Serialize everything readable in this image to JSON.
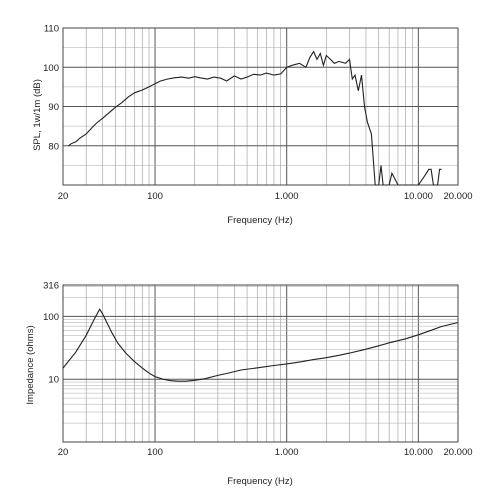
{
  "chart_data": [
    {
      "type": "line",
      "title": "",
      "xlabel": "Frequency (Hz)",
      "ylabel": "SPL, 1w/1m (dB)",
      "x_scale": "log",
      "xlim": [
        20,
        20000
      ],
      "ylim": [
        70,
        110
      ],
      "grid": true,
      "x_tick_labels": [
        "20",
        "100",
        "1.000",
        "10.000",
        "20.000"
      ],
      "y_tick_labels": [
        "80",
        "90",
        "100",
        "110"
      ],
      "series": [
        {
          "x": [
            22,
            23,
            25,
            27,
            30,
            33,
            36,
            40,
            45,
            50,
            56,
            63,
            70,
            80,
            90,
            100,
            110,
            125,
            140,
            160,
            180,
            200,
            220,
            250,
            280,
            315,
            350,
            400,
            450,
            500,
            560,
            630,
            700,
            800,
            900,
            1000,
            1100,
            1250,
            1400,
            1500,
            1600,
            1700,
            1800,
            1900,
            2000,
            2150,
            2300,
            2500,
            2800,
            3000,
            3150,
            3300,
            3500,
            3700,
            3900,
            4100,
            4400,
            4700,
            5000,
            5200,
            5400,
            5700,
            6000,
            6300,
            7000,
            8000,
            9000,
            10000,
            11000,
            12000,
            12500,
            13000,
            13500,
            14000,
            14500,
            15000
          ],
          "y": [
            80,
            80.5,
            81,
            82,
            83,
            84.5,
            85.8,
            87,
            88.5,
            89.8,
            91,
            92.5,
            93.5,
            94.2,
            95,
            95.8,
            96.5,
            97,
            97.3,
            97.5,
            97.2,
            97.6,
            97.3,
            97,
            97.5,
            97.2,
            96.5,
            97.8,
            97,
            97.5,
            98.2,
            98,
            98.5,
            98,
            98.3,
            100,
            100.5,
            101,
            100,
            102.5,
            104,
            102,
            103.5,
            100.5,
            103,
            102,
            101,
            101.5,
            101,
            102,
            97,
            98,
            94,
            98,
            90,
            86,
            83,
            70,
            70,
            75,
            70,
            70,
            70,
            73,
            70,
            70,
            70,
            70,
            72,
            74,
            74,
            70,
            70,
            70,
            74,
            74
          ]
        }
      ]
    },
    {
      "type": "line",
      "title": "",
      "xlabel": "Frequency (Hz)",
      "ylabel": "Impedance (ohms)",
      "x_scale": "log",
      "y_scale": "log",
      "xlim": [
        20,
        20000
      ],
      "ylim": [
        1,
        316
      ],
      "grid": true,
      "x_tick_labels": [
        "20",
        "100",
        "1.000",
        "10.000",
        "20.000"
      ],
      "y_tick_labels": [
        "316",
        "100",
        "10"
      ],
      "series": [
        {
          "x": [
            20,
            25,
            30,
            35,
            38,
            40,
            43,
            47,
            52,
            60,
            70,
            80,
            90,
            100,
            115,
            130,
            150,
            170,
            200,
            240,
            300,
            360,
            450,
            550,
            650,
            800,
            1000,
            1300,
            1600,
            2000,
            2500,
            3000,
            4000,
            5000,
            6000,
            8000,
            10000,
            12500,
            15000,
            20000
          ],
          "y": [
            15,
            27,
            50,
            95,
            130,
            110,
            80,
            55,
            38,
            26,
            19,
            15,
            12.5,
            11,
            10,
            9.5,
            9.3,
            9.3,
            9.6,
            10.2,
            11.5,
            12.5,
            14,
            14.8,
            15.5,
            16.5,
            17.5,
            19,
            20.5,
            22,
            24,
            26,
            30,
            34,
            38,
            44,
            51,
            60,
            69,
            80
          ]
        }
      ]
    }
  ]
}
